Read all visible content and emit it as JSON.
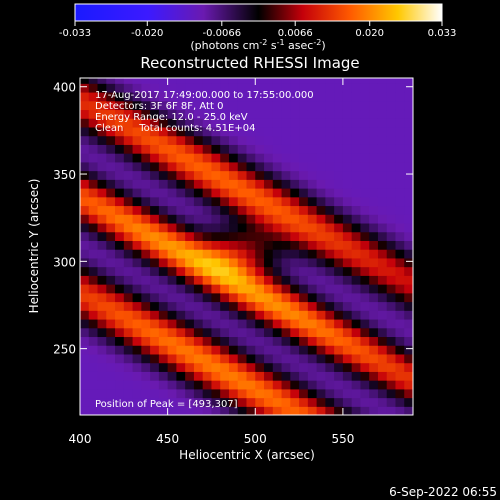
{
  "chart_data": {
    "type": "heatmap",
    "title": "Reconstructed RHESSI Image",
    "xlabel": "Heliocentric X (arcsec)",
    "ylabel": "Heliocentric Y (arcsec)",
    "xlim": [
      400,
      590
    ],
    "ylim": [
      212,
      405
    ],
    "xticks": [
      400,
      450,
      500,
      550
    ],
    "yticks": [
      250,
      300,
      350,
      400
    ],
    "colorbar": {
      "ticks": [
        "-0.033",
        "-0.020",
        "-0.0066",
        "0.0066",
        "0.020",
        "0.033"
      ],
      "unit_label": "(photons cm",
      "unit_exp1": "-2",
      "unit_mid": " s",
      "unit_exp2": "-1",
      "unit_end": " asec",
      "unit_exp3": "-2",
      "unit_close": ")",
      "range": [
        -0.033,
        0.033
      ]
    },
    "info_lines": [
      "17-Aug-2017 17:49:00.000 to 17:55:00.000",
      "Detectors: 3F 6F 8F, Att 0",
      "Energy Range: 12.0 - 25.0 keV",
      "Clean     Total counts: 4.51E+04"
    ],
    "peak_label": "Position of Peak = [493,307]",
    "peak": [
      493,
      307
    ],
    "bands": [
      {
        "name": "upper-band",
        "center_y_at_x400": 392,
        "slope": -0.55,
        "width": 16,
        "peak_value": 0.028
      },
      {
        "name": "middle-band",
        "center_y_at_x400": 337,
        "slope": -0.55,
        "width": 15,
        "peak_value": 0.033
      },
      {
        "name": "lower-band",
        "center_y_at_x400": 282,
        "slope": -0.55,
        "width": 16,
        "peak_value": 0.03
      }
    ]
  },
  "footer_date": "6-Sep-2022 06:55"
}
